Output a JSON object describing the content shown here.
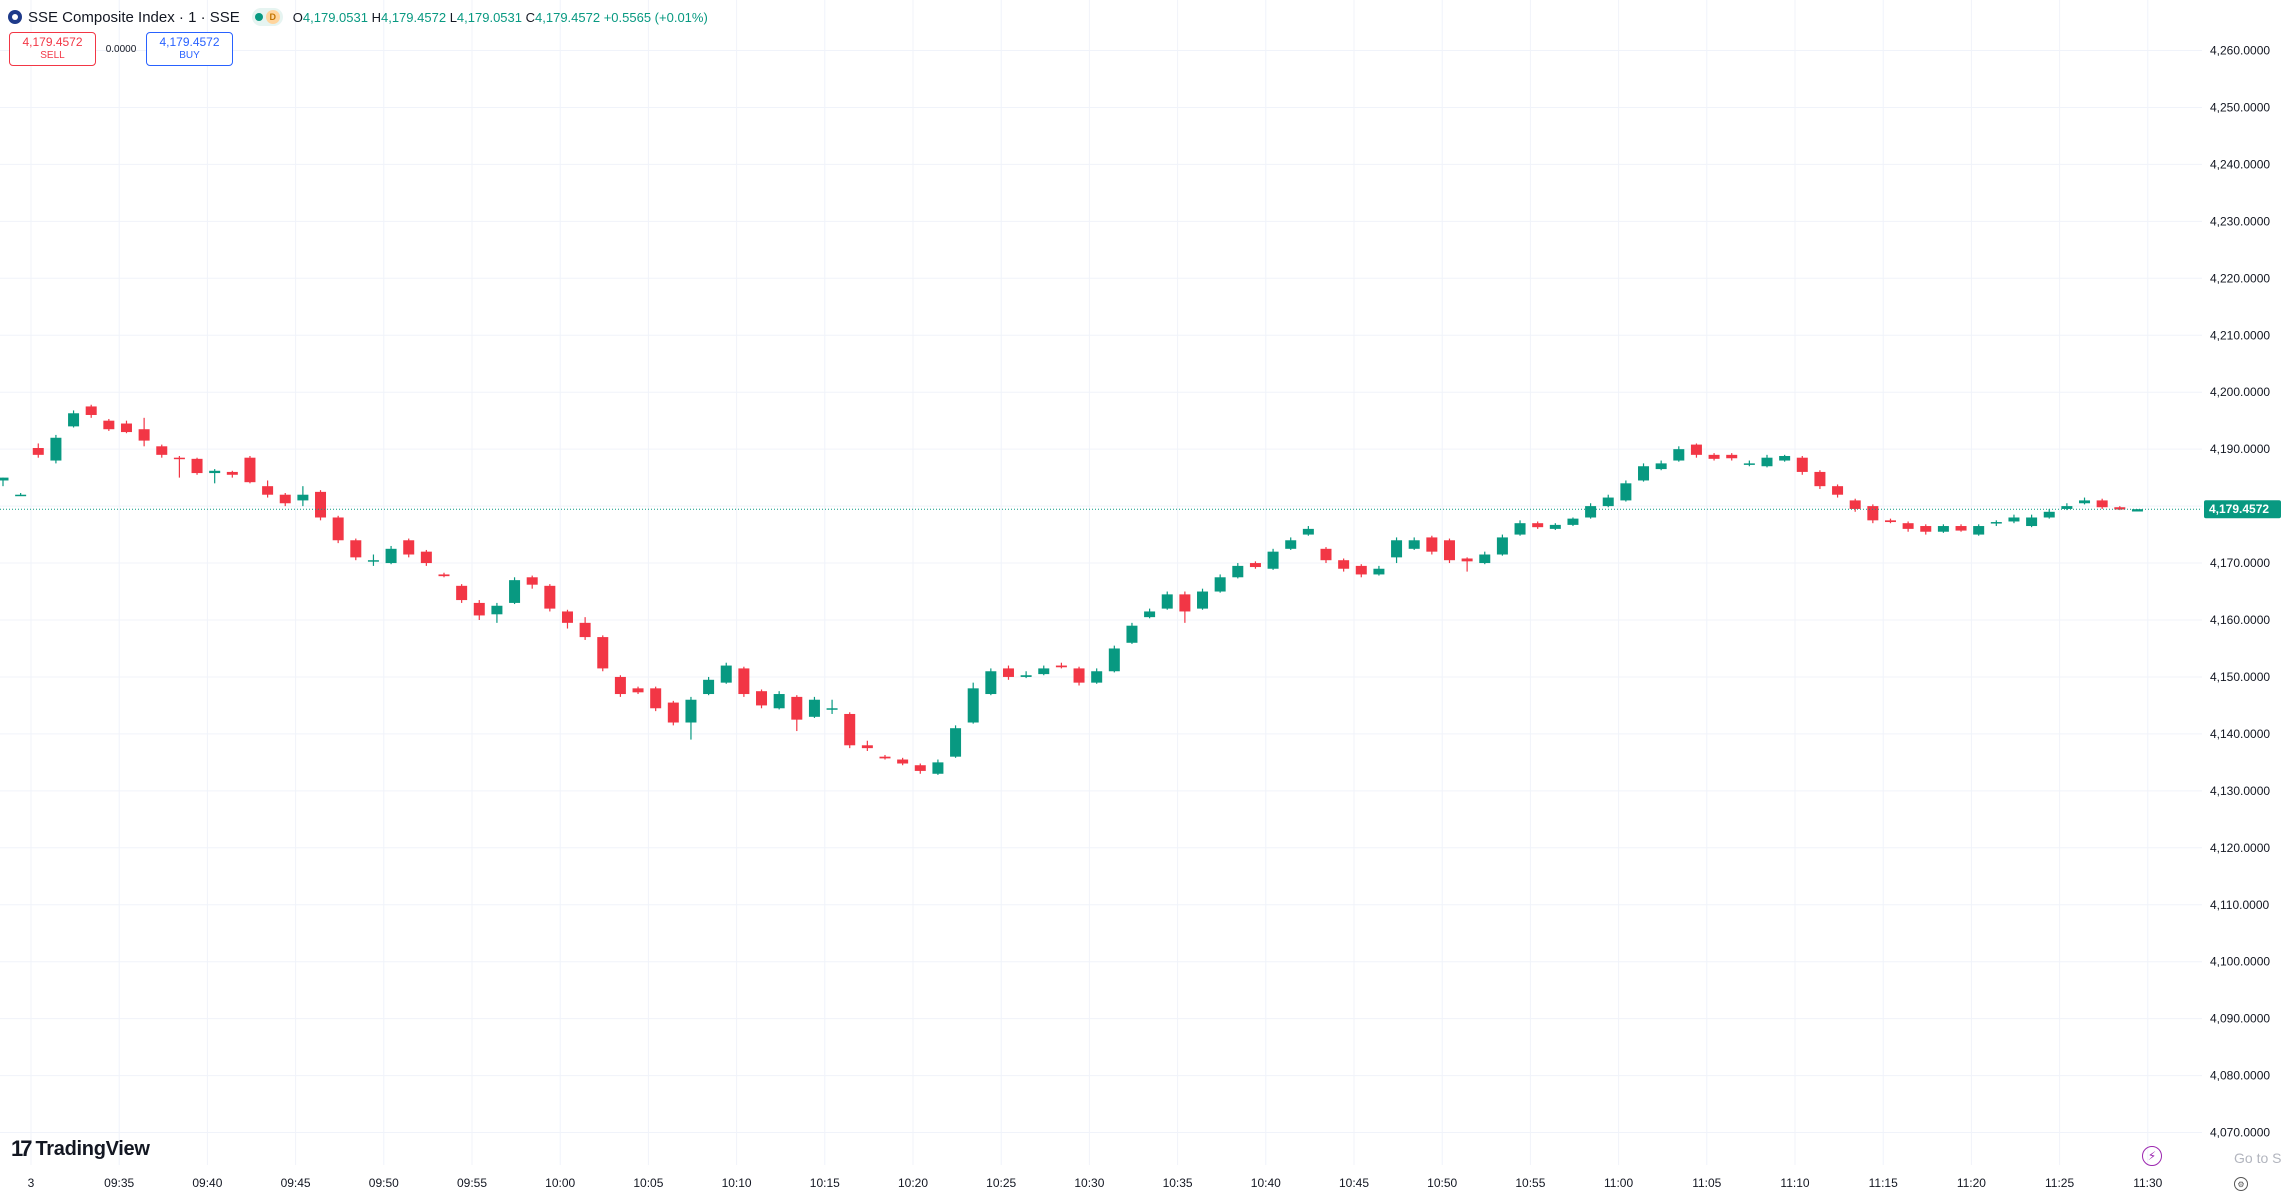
{
  "header": {
    "title": "SSE Composite Index · 1 · SSE",
    "status_badge": "D",
    "ohlc": {
      "o_label": "O",
      "o": "4,179.0531",
      "h_label": "H",
      "h": "4,179.4572",
      "l_label": "L",
      "l": "4,179.0531",
      "c_label": "C",
      "c": "4,179.4572",
      "change": "+0.5565 (+0.01%)"
    }
  },
  "trade": {
    "sell_price": "4,179.4572",
    "sell_label": "SELL",
    "spread": "0.0000",
    "buy_price": "4,179.4572",
    "buy_label": "BUY"
  },
  "brand": {
    "name": "TradingView",
    "mark": "17"
  },
  "footer": {
    "goto": "Go to S"
  },
  "colors": {
    "up": "#089981",
    "down": "#f23645",
    "grid": "#f0f3fa",
    "axis_text": "#131722"
  },
  "icons": [
    "logo-icon",
    "market-open-dot-icon",
    "lightning-icon",
    "settings-icon"
  ],
  "chart_data": {
    "type": "candlestick",
    "title": "SSE Composite Index · 1 · SSE",
    "ylim": [
      4068,
      4264
    ],
    "y_ticks": [
      4260,
      4250,
      4240,
      4230,
      4220,
      4210,
      4200,
      4190,
      4180,
      4170,
      4160,
      4150,
      4140,
      4130,
      4120,
      4110,
      4100,
      4090,
      4080,
      4070
    ],
    "y_tick_labels": [
      "4,260.0000",
      "4,250.0000",
      "4,240.0000",
      "4,230.0000",
      "4,220.0000",
      "4,210.0000",
      "4,200.0000",
      "4,190.0000",
      "4,180.0000",
      "4,170.0000",
      "4,160.0000",
      "4,150.0000",
      "4,140.0000",
      "4,130.0000",
      "4,120.0000",
      "4,110.0000",
      "4,100.0000",
      "4,090.0000",
      "4,080.0000",
      "4,070.0000"
    ],
    "x_tick_labels": [
      "3",
      "09:35",
      "09:40",
      "09:45",
      "09:50",
      "09:55",
      "10:00",
      "10:05",
      "10:10",
      "10:15",
      "10:20",
      "10:25",
      "10:30",
      "10:35",
      "10:40",
      "10:45",
      "10:50",
      "10:55",
      "11:00",
      "11:05",
      "11:10",
      "11:15",
      "11:20",
      "11:25",
      "11:30"
    ],
    "last_price": 4179.4572,
    "last_price_label": "4,179.4572",
    "grid": true,
    "candles": [
      {
        "t": "09:30",
        "o": 4184.5,
        "h": 4185.0,
        "l": 4183.5,
        "c": 4185.0
      },
      {
        "t": "09:31",
        "o": 4182.0,
        "h": 4182.3,
        "l": 4181.8,
        "c": 4182.0
      },
      {
        "t": "09:32",
        "o": 4190.2,
        "h": 4191.0,
        "l": 4188.5,
        "c": 4189.0
      },
      {
        "t": "09:33",
        "o": 4188.0,
        "h": 4192.5,
        "l": 4187.5,
        "c": 4192.0
      },
      {
        "t": "09:34",
        "o": 4194.0,
        "h": 4196.8,
        "l": 4193.8,
        "c": 4196.3
      },
      {
        "t": "09:35",
        "o": 4197.5,
        "h": 4197.8,
        "l": 4195.5,
        "c": 4196.0
      },
      {
        "t": "09:36",
        "o": 4195.0,
        "h": 4195.3,
        "l": 4193.2,
        "c": 4193.5
      },
      {
        "t": "09:37",
        "o": 4194.5,
        "h": 4195.0,
        "l": 4192.8,
        "c": 4193.0
      },
      {
        "t": "09:38",
        "o": 4193.5,
        "h": 4195.5,
        "l": 4190.5,
        "c": 4191.5
      },
      {
        "t": "09:39",
        "o": 4190.5,
        "h": 4190.8,
        "l": 4188.5,
        "c": 4189.0
      },
      {
        "t": "09:40",
        "o": 4188.5,
        "h": 4188.8,
        "l": 4185.0,
        "c": 4188.3
      },
      {
        "t": "09:41",
        "o": 4188.3,
        "h": 4188.5,
        "l": 4185.5,
        "c": 4185.8
      },
      {
        "t": "09:42",
        "o": 4185.8,
        "h": 4186.5,
        "l": 4184.0,
        "c": 4186.2
      },
      {
        "t": "09:43",
        "o": 4186.0,
        "h": 4186.2,
        "l": 4185.0,
        "c": 4185.5
      },
      {
        "t": "09:44",
        "o": 4188.5,
        "h": 4188.8,
        "l": 4184.0,
        "c": 4184.2
      },
      {
        "t": "09:45",
        "o": 4183.5,
        "h": 4184.5,
        "l": 4181.5,
        "c": 4182.0
      },
      {
        "t": "09:46",
        "o": 4182.0,
        "h": 4182.3,
        "l": 4180.0,
        "c": 4180.5
      },
      {
        "t": "09:47",
        "o": 4181.0,
        "h": 4183.5,
        "l": 4180.0,
        "c": 4182.0
      },
      {
        "t": "09:48",
        "o": 4182.5,
        "h": 4182.8,
        "l": 4177.5,
        "c": 4178.0
      },
      {
        "t": "09:49",
        "o": 4178.0,
        "h": 4178.3,
        "l": 4173.5,
        "c": 4174.0
      },
      {
        "t": "09:50",
        "o": 4174.0,
        "h": 4174.3,
        "l": 4170.5,
        "c": 4171.0
      },
      {
        "t": "09:51",
        "o": 4170.5,
        "h": 4171.5,
        "l": 4169.5,
        "c": 4170.5
      },
      {
        "t": "09:52",
        "o": 4170.0,
        "h": 4173.0,
        "l": 4169.8,
        "c": 4172.5
      },
      {
        "t": "09:53",
        "o": 4174.0,
        "h": 4174.3,
        "l": 4171.0,
        "c": 4171.5
      },
      {
        "t": "09:54",
        "o": 4172.0,
        "h": 4172.3,
        "l": 4169.5,
        "c": 4170.0
      },
      {
        "t": "09:55",
        "o": 4168.0,
        "h": 4168.3,
        "l": 4167.5,
        "c": 4167.7
      },
      {
        "t": "09:56",
        "o": 4166.0,
        "h": 4166.3,
        "l": 4163.0,
        "c": 4163.5
      },
      {
        "t": "09:57",
        "o": 4163.0,
        "h": 4163.5,
        "l": 4160.0,
        "c": 4160.8
      },
      {
        "t": "09:58",
        "o": 4161.0,
        "h": 4163.0,
        "l": 4159.5,
        "c": 4162.5
      },
      {
        "t": "09:59",
        "o": 4163.0,
        "h": 4167.5,
        "l": 4162.8,
        "c": 4167.0
      },
      {
        "t": "10:00",
        "o": 4167.5,
        "h": 4167.8,
        "l": 4165.5,
        "c": 4166.2
      },
      {
        "t": "10:01",
        "o": 4166.0,
        "h": 4166.3,
        "l": 4161.5,
        "c": 4162.0
      },
      {
        "t": "10:02",
        "o": 4161.5,
        "h": 4161.8,
        "l": 4158.5,
        "c": 4159.5
      },
      {
        "t": "10:03",
        "o": 4159.5,
        "h": 4160.5,
        "l": 4156.5,
        "c": 4157.0
      },
      {
        "t": "10:04",
        "o": 4157.0,
        "h": 4157.3,
        "l": 4151.0,
        "c": 4151.5
      },
      {
        "t": "10:05",
        "o": 4150.0,
        "h": 4150.3,
        "l": 4146.5,
        "c": 4147.0
      },
      {
        "t": "10:06",
        "o": 4148.0,
        "h": 4148.3,
        "l": 4147.0,
        "c": 4147.3
      },
      {
        "t": "10:07",
        "o": 4148.0,
        "h": 4148.3,
        "l": 4144.0,
        "c": 4144.5
      },
      {
        "t": "10:08",
        "o": 4145.5,
        "h": 4145.8,
        "l": 4141.5,
        "c": 4142.0
      },
      {
        "t": "10:09",
        "o": 4142.0,
        "h": 4146.5,
        "l": 4139.0,
        "c": 4146.0
      },
      {
        "t": "10:10",
        "o": 4147.0,
        "h": 4150.0,
        "l": 4146.8,
        "c": 4149.5
      },
      {
        "t": "10:11",
        "o": 4149.0,
        "h": 4152.5,
        "l": 4148.8,
        "c": 4152.0
      },
      {
        "t": "10:12",
        "o": 4151.5,
        "h": 4151.8,
        "l": 4146.5,
        "c": 4147.0
      },
      {
        "t": "10:13",
        "o": 4147.5,
        "h": 4147.8,
        "l": 4144.5,
        "c": 4145.0
      },
      {
        "t": "10:14",
        "o": 4144.5,
        "h": 4147.5,
        "l": 4144.3,
        "c": 4147.0
      },
      {
        "t": "10:15",
        "o": 4146.5,
        "h": 4146.8,
        "l": 4140.5,
        "c": 4142.5
      },
      {
        "t": "10:16",
        "o": 4143.0,
        "h": 4146.5,
        "l": 4142.8,
        "c": 4146.0
      },
      {
        "t": "10:17",
        "o": 4144.5,
        "h": 4146.0,
        "l": 4143.5,
        "c": 4144.5
      },
      {
        "t": "10:18",
        "o": 4143.5,
        "h": 4143.8,
        "l": 4137.5,
        "c": 4138.0
      },
      {
        "t": "10:19",
        "o": 4138.0,
        "h": 4138.8,
        "l": 4137.0,
        "c": 4137.5
      },
      {
        "t": "10:20",
        "o": 4136.0,
        "h": 4136.3,
        "l": 4135.5,
        "c": 4135.7
      },
      {
        "t": "10:21",
        "o": 4135.5,
        "h": 4135.8,
        "l": 4134.5,
        "c": 4134.8
      },
      {
        "t": "10:22",
        "o": 4134.5,
        "h": 4134.8,
        "l": 4133.0,
        "c": 4133.5
      },
      {
        "t": "10:23",
        "o": 4133.0,
        "h": 4135.5,
        "l": 4132.8,
        "c": 4135.0
      },
      {
        "t": "10:24",
        "o": 4136.0,
        "h": 4141.5,
        "l": 4135.8,
        "c": 4141.0
      },
      {
        "t": "10:25",
        "o": 4142.0,
        "h": 4149.0,
        "l": 4141.8,
        "c": 4148.0
      },
      {
        "t": "10:26",
        "o": 4147.0,
        "h": 4151.5,
        "l": 4146.8,
        "c": 4151.0
      },
      {
        "t": "10:27",
        "o": 4151.5,
        "h": 4152.0,
        "l": 4149.5,
        "c": 4150.0
      },
      {
        "t": "10:28",
        "o": 4150.0,
        "h": 4151.0,
        "l": 4149.8,
        "c": 4150.3
      },
      {
        "t": "10:29",
        "o": 4150.5,
        "h": 4152.0,
        "l": 4150.3,
        "c": 4151.5
      },
      {
        "t": "10:30",
        "o": 4152.0,
        "h": 4152.5,
        "l": 4151.5,
        "c": 4151.7
      },
      {
        "t": "10:31",
        "o": 4151.5,
        "h": 4151.8,
        "l": 4148.5,
        "c": 4149.0
      },
      {
        "t": "10:32",
        "o": 4149.0,
        "h": 4151.5,
        "l": 4148.8,
        "c": 4151.0
      },
      {
        "t": "10:33",
        "o": 4151.0,
        "h": 4155.5,
        "l": 4150.8,
        "c": 4155.0
      },
      {
        "t": "10:34",
        "o": 4156.0,
        "h": 4159.5,
        "l": 4155.8,
        "c": 4159.0
      },
      {
        "t": "10:35",
        "o": 4160.5,
        "h": 4162.0,
        "l": 4160.3,
        "c": 4161.5
      },
      {
        "t": "10:36",
        "o": 4162.0,
        "h": 4165.0,
        "l": 4161.8,
        "c": 4164.5
      },
      {
        "t": "10:37",
        "o": 4164.5,
        "h": 4165.0,
        "l": 4159.5,
        "c": 4161.5
      },
      {
        "t": "10:38",
        "o": 4162.0,
        "h": 4165.5,
        "l": 4161.8,
        "c": 4165.0
      },
      {
        "t": "10:39",
        "o": 4165.0,
        "h": 4168.0,
        "l": 4164.8,
        "c": 4167.5
      },
      {
        "t": "10:40",
        "o": 4167.5,
        "h": 4170.0,
        "l": 4167.3,
        "c": 4169.5
      },
      {
        "t": "10:41",
        "o": 4170.0,
        "h": 4170.3,
        "l": 4169.0,
        "c": 4169.3
      },
      {
        "t": "10:42",
        "o": 4169.0,
        "h": 4172.5,
        "l": 4168.8,
        "c": 4172.0
      },
      {
        "t": "10:43",
        "o": 4172.5,
        "h": 4174.5,
        "l": 4172.3,
        "c": 4174.0
      },
      {
        "t": "10:44",
        "o": 4175.0,
        "h": 4176.5,
        "l": 4174.8,
        "c": 4176.0
      },
      {
        "t": "10:45",
        "o": 4172.5,
        "h": 4172.8,
        "l": 4170.0,
        "c": 4170.5
      },
      {
        "t": "10:46",
        "o": 4170.5,
        "h": 4170.8,
        "l": 4168.5,
        "c": 4169.0
      },
      {
        "t": "10:47",
        "o": 4169.5,
        "h": 4169.8,
        "l": 4167.5,
        "c": 4168.0
      },
      {
        "t": "10:48",
        "o": 4168.0,
        "h": 4169.5,
        "l": 4167.8,
        "c": 4169.0
      },
      {
        "t": "10:49",
        "o": 4171.0,
        "h": 4174.5,
        "l": 4170.0,
        "c": 4174.0
      },
      {
        "t": "10:50",
        "o": 4172.5,
        "h": 4174.5,
        "l": 4172.3,
        "c": 4174.0
      },
      {
        "t": "10:51",
        "o": 4174.5,
        "h": 4174.8,
        "l": 4171.5,
        "c": 4172.0
      },
      {
        "t": "10:52",
        "o": 4174.0,
        "h": 4174.3,
        "l": 4170.0,
        "c": 4170.5
      },
      {
        "t": "10:53",
        "o": 4170.8,
        "h": 4171.0,
        "l": 4168.5,
        "c": 4170.3
      },
      {
        "t": "10:54",
        "o": 4170.0,
        "h": 4172.0,
        "l": 4169.8,
        "c": 4171.5
      },
      {
        "t": "10:55",
        "o": 4171.5,
        "h": 4175.0,
        "l": 4171.3,
        "c": 4174.5
      },
      {
        "t": "10:56",
        "o": 4175.0,
        "h": 4177.5,
        "l": 4174.8,
        "c": 4177.0
      },
      {
        "t": "10:57",
        "o": 4177.0,
        "h": 4177.3,
        "l": 4176.0,
        "c": 4176.3
      },
      {
        "t": "10:58",
        "o": 4176.0,
        "h": 4177.0,
        "l": 4175.8,
        "c": 4176.7
      },
      {
        "t": "10:59",
        "o": 4176.7,
        "h": 4178.0,
        "l": 4176.5,
        "c": 4177.8
      },
      {
        "t": "11:00",
        "o": 4178.0,
        "h": 4180.5,
        "l": 4177.8,
        "c": 4180.0
      },
      {
        "t": "11:01",
        "o": 4180.0,
        "h": 4182.0,
        "l": 4179.8,
        "c": 4181.5
      },
      {
        "t": "11:02",
        "o": 4181.0,
        "h": 4184.5,
        "l": 4180.8,
        "c": 4184.0
      },
      {
        "t": "11:03",
        "o": 4184.5,
        "h": 4187.5,
        "l": 4184.3,
        "c": 4187.0
      },
      {
        "t": "11:04",
        "o": 4186.5,
        "h": 4188.0,
        "l": 4186.3,
        "c": 4187.5
      },
      {
        "t": "11:05",
        "o": 4188.0,
        "h": 4190.5,
        "l": 4187.8,
        "c": 4190.0
      },
      {
        "t": "11:06",
        "o": 4190.8,
        "h": 4191.0,
        "l": 4188.5,
        "c": 4189.0
      },
      {
        "t": "11:07",
        "o": 4189.0,
        "h": 4189.3,
        "l": 4188.0,
        "c": 4188.3
      },
      {
        "t": "11:08",
        "o": 4189.0,
        "h": 4189.3,
        "l": 4188.0,
        "c": 4188.4
      },
      {
        "t": "11:09",
        "o": 4187.5,
        "h": 4188.0,
        "l": 4187.0,
        "c": 4187.5
      },
      {
        "t": "11:10",
        "o": 4187.0,
        "h": 4189.0,
        "l": 4186.8,
        "c": 4188.5
      },
      {
        "t": "11:11",
        "o": 4188.0,
        "h": 4189.0,
        "l": 4187.8,
        "c": 4188.8
      },
      {
        "t": "11:12",
        "o": 4188.5,
        "h": 4188.8,
        "l": 4185.5,
        "c": 4186.0
      },
      {
        "t": "11:13",
        "o": 4186.0,
        "h": 4186.3,
        "l": 4183.0,
        "c": 4183.5
      },
      {
        "t": "11:14",
        "o": 4183.5,
        "h": 4183.8,
        "l": 4181.5,
        "c": 4182.0
      },
      {
        "t": "11:15",
        "o": 4181.0,
        "h": 4181.3,
        "l": 4179.0,
        "c": 4179.5
      },
      {
        "t": "11:16",
        "o": 4180.0,
        "h": 4180.3,
        "l": 4177.0,
        "c": 4177.5
      },
      {
        "t": "11:17",
        "o": 4177.5,
        "h": 4177.8,
        "l": 4177.0,
        "c": 4177.2
      },
      {
        "t": "11:18",
        "o": 4177.0,
        "h": 4177.3,
        "l": 4175.5,
        "c": 4176.0
      },
      {
        "t": "11:19",
        "o": 4176.5,
        "h": 4176.8,
        "l": 4175.0,
        "c": 4175.5
      },
      {
        "t": "11:20",
        "o": 4175.5,
        "h": 4176.8,
        "l": 4175.3,
        "c": 4176.5
      },
      {
        "t": "11:21",
        "o": 4176.5,
        "h": 4176.8,
        "l": 4175.5,
        "c": 4175.7
      },
      {
        "t": "11:22",
        "o": 4175.0,
        "h": 4176.8,
        "l": 4174.8,
        "c": 4176.5
      },
      {
        "t": "11:23",
        "o": 4177.0,
        "h": 4177.5,
        "l": 4176.5,
        "c": 4177.2
      },
      {
        "t": "11:24",
        "o": 4177.3,
        "h": 4178.5,
        "l": 4177.0,
        "c": 4178.0
      },
      {
        "t": "11:25",
        "o": 4176.5,
        "h": 4178.5,
        "l": 4176.3,
        "c": 4178.0
      },
      {
        "t": "11:26",
        "o": 4178.0,
        "h": 4179.5,
        "l": 4177.8,
        "c": 4179.0
      },
      {
        "t": "11:27",
        "o": 4179.5,
        "h": 4180.5,
        "l": 4179.3,
        "c": 4180.0
      },
      {
        "t": "11:28",
        "o": 4180.5,
        "h": 4181.5,
        "l": 4180.3,
        "c": 4181.0
      },
      {
        "t": "11:29",
        "o": 4181.0,
        "h": 4181.3,
        "l": 4179.5,
        "c": 4179.8
      },
      {
        "t": "11:30",
        "o": 4179.8,
        "h": 4180.0,
        "l": 4179.3,
        "c": 4179.4
      },
      {
        "t": "11:31",
        "o": 4179.0531,
        "h": 4179.4572,
        "l": 4179.0531,
        "c": 4179.4572
      }
    ]
  }
}
